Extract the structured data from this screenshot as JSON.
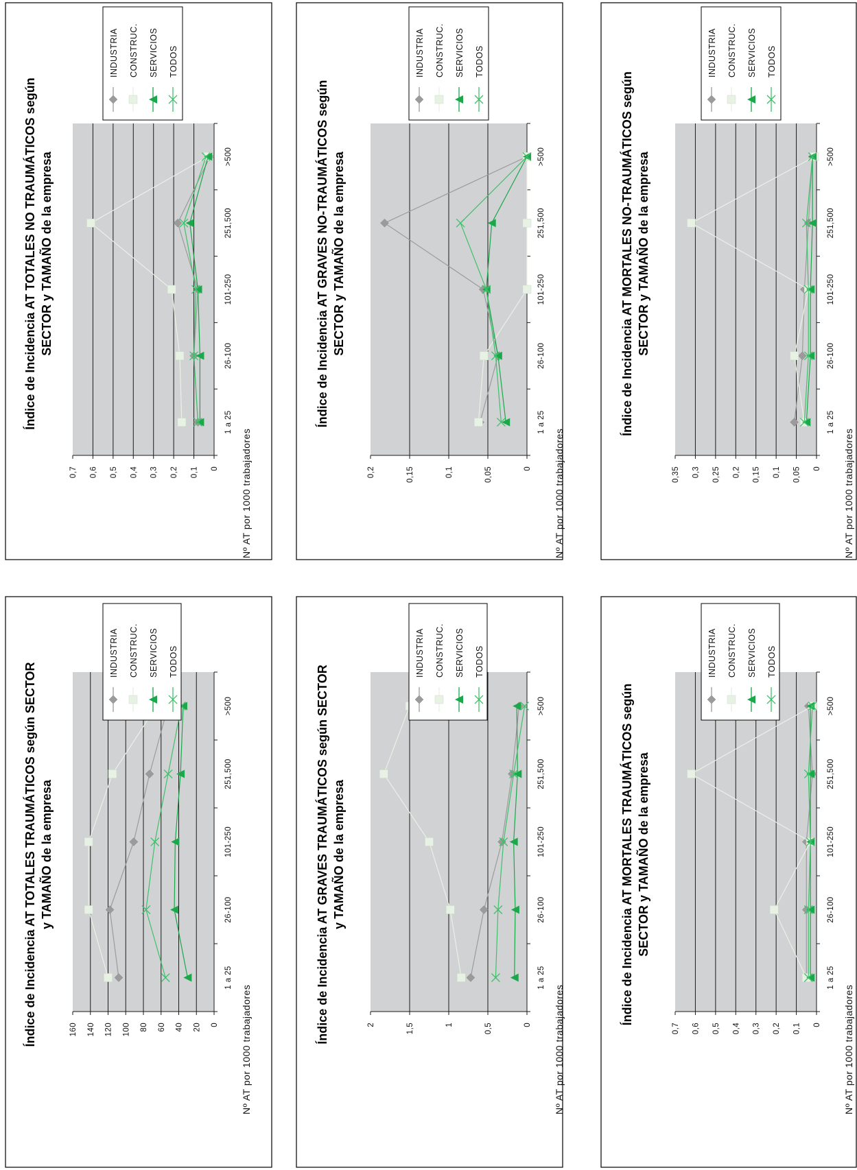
{
  "legend": [
    "INDUSTRIA",
    "CONSTRUC.",
    "SERVICIOS",
    "TODOS"
  ],
  "colors": {
    "INDUSTRIA": "#9b9b9b",
    "CONSTRUC.": "#e8f2e4",
    "SERVICIOS": "#1aa84a",
    "TODOS": "#3fc06a"
  },
  "chart_data": [
    {
      "type": "line",
      "title": [
        "Índice de Incidencia AT TOTALES TRAUMÁTICOS según SECTOR",
        "y TAMAÑO de la empresa"
      ],
      "ylabel": "Nº AT  por  1000 trabajadores",
      "categories": [
        "1 a 25",
        "26-100",
        "101-250",
        "251,500",
        ">500"
      ],
      "yticks": [
        "0",
        "20",
        "40",
        "60",
        "80",
        "100",
        "120",
        "140",
        "160"
      ],
      "ylim": [
        0,
        160
      ],
      "grid": true,
      "legend_position": "bottom-right",
      "series": [
        {
          "name": "INDUSTRIA",
          "values": [
            108,
            118,
            91,
            73,
            52
          ]
        },
        {
          "name": "CONSTRUC.",
          "values": [
            120,
            142,
            142,
            115,
            65
          ]
        },
        {
          "name": "SERVICIOS",
          "values": [
            30,
            45,
            44,
            38,
            35
          ]
        },
        {
          "name": "TODOS",
          "values": [
            55,
            77,
            67,
            52,
            37
          ]
        }
      ]
    },
    {
      "type": "line",
      "title": [
        "Índice de Incidencia AT TOTALES NO TRAUMÁTICOS según",
        "SECTOR y TAMAÑO de la empresa"
      ],
      "ylabel": "Nº AT  por  1000 trabajadores",
      "categories": [
        "1 a 25",
        "26-100",
        "101-250",
        "251,500",
        ">500"
      ],
      "yticks": [
        "0",
        "0,1",
        "0,2",
        "0,3",
        "0,4",
        "0,5",
        "0,6",
        "0,7"
      ],
      "ylim": [
        0,
        0.7
      ],
      "grid": true,
      "legend_position": "top-right",
      "series": [
        {
          "name": "INDUSTRIA",
          "values": [
            0.08,
            0.1,
            0.08,
            0.18,
            0.02
          ]
        },
        {
          "name": "CONSTRUC.",
          "values": [
            0.16,
            0.17,
            0.21,
            0.61,
            0.03
          ]
        },
        {
          "name": "SERVICIOS",
          "values": [
            0.07,
            0.07,
            0.08,
            0.12,
            0.03
          ]
        },
        {
          "name": "TODOS",
          "values": [
            0.08,
            0.1,
            0.09,
            0.15,
            0.04
          ]
        }
      ]
    },
    {
      "type": "line",
      "title": [
        "Índice de Incidencia AT GRAVES TRAUMÁTICOS según SECTOR",
        "y TAMAÑO de la empresa"
      ],
      "ylabel": "Nº AT  por  1000 trabajadores",
      "categories": [
        "1 a 25",
        "26-100",
        "101-250",
        "251,500",
        ">500"
      ],
      "yticks": [
        "0",
        "0,5",
        "1",
        "1,5",
        "2"
      ],
      "ylim": [
        0,
        2
      ],
      "grid": true,
      "legend_position": "bottom-right",
      "series": [
        {
          "name": "INDUSTRIA",
          "values": [
            0.72,
            0.55,
            0.32,
            0.19,
            0.1
          ]
        },
        {
          "name": "CONSTRUC.",
          "values": [
            0.84,
            0.98,
            1.25,
            1.83,
            1.5
          ]
        },
        {
          "name": "SERVICIOS",
          "values": [
            0.16,
            0.15,
            0.17,
            0.12,
            0.13
          ]
        },
        {
          "name": "TODOS",
          "values": [
            0.4,
            0.37,
            0.3,
            0.17,
            0.03
          ]
        }
      ]
    },
    {
      "type": "line",
      "title": [
        "Índice de Incidencia AT GRAVES NO-TRAUMÁTICOS según",
        "SECTOR y TAMAÑO de la empresa"
      ],
      "ylabel": "Nº AT  por  1000 trabajadores",
      "categories": [
        "1 a 25",
        "26-100",
        "101-250",
        "251,500",
        ">500"
      ],
      "yticks": [
        "0",
        "0,05",
        "0,1",
        "0,15",
        "0,2"
      ],
      "ylim": [
        0,
        0.2
      ],
      "grid": true,
      "legend_position": "top-right",
      "series": [
        {
          "name": "INDUSTRIA",
          "values": [
            0.06,
            0.037,
            0.056,
            0.182,
            0.0
          ]
        },
        {
          "name": "CONSTRUC.",
          "values": [
            0.062,
            0.055,
            0.0,
            0.0,
            0.0
          ]
        },
        {
          "name": "SERVICIOS",
          "values": [
            0.027,
            0.037,
            0.052,
            0.045,
            0.0
          ]
        },
        {
          "name": "TODOS",
          "values": [
            0.033,
            0.04,
            0.052,
            0.085,
            0.0
          ]
        }
      ]
    },
    {
      "type": "line",
      "title": [
        "Índice de Incidencia AT MORTALES TRAUMÁTICOS según",
        "SECTOR y TAMAÑO de la empresa"
      ],
      "ylabel": "Nº AT  por  1000 trabajadores",
      "categories": [
        "1 a 25",
        "26-100",
        "101-250",
        "251,500",
        ">500"
      ],
      "yticks": [
        "0",
        "0,1",
        "0,2",
        "0,3",
        "0,4",
        "0,5",
        "0,6",
        "0,7"
      ],
      "ylim": [
        0,
        0.7
      ],
      "grid": true,
      "legend_position": "bottom-right",
      "series": [
        {
          "name": "INDUSTRIA",
          "values": [
            0.05,
            0.05,
            0.05,
            0.02,
            0.04
          ]
        },
        {
          "name": "CONSTRUC.",
          "values": [
            0.05,
            0.21,
            0.03,
            0.62,
            0.02
          ]
        },
        {
          "name": "SERVICIOS",
          "values": [
            0.03,
            0.03,
            0.03,
            0.03,
            0.03
          ]
        },
        {
          "name": "TODOS",
          "values": [
            0.04,
            0.04,
            0.03,
            0.04,
            0.02
          ]
        }
      ]
    },
    {
      "type": "line",
      "title": [
        "Índice de Incidencia AT MORTALES NO-TRAUMÁTICOS según",
        "SECTOR y TAMAÑO de la empresa"
      ],
      "ylabel": "Nº AT  por  1000 trabajadores",
      "categories": [
        "1 a 25",
        "26-100",
        "101-250",
        "251,500",
        ">500"
      ],
      "yticks": [
        "0",
        "0,05",
        "0,1",
        "0,15",
        "0,2",
        "0,25",
        "0,3",
        "0,35"
      ],
      "ylim": [
        0,
        0.35
      ],
      "grid": true,
      "legend_position": "top-right",
      "series": [
        {
          "name": "INDUSTRIA",
          "values": [
            0.055,
            0.035,
            0.03,
            0.02,
            0.01
          ]
        },
        {
          "name": "CONSTRUC.",
          "values": [
            0.03,
            0.055,
            0.02,
            0.31,
            0.005
          ]
        },
        {
          "name": "SERVICIOS",
          "values": [
            0.025,
            0.015,
            0.015,
            0.01,
            0.01
          ]
        },
        {
          "name": "TODOS",
          "values": [
            0.03,
            0.02,
            0.02,
            0.025,
            0.01
          ]
        }
      ]
    }
  ]
}
